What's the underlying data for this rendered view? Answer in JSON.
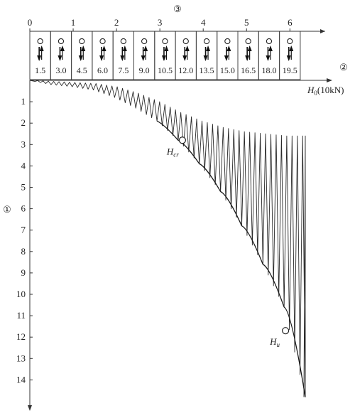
{
  "chart_data": {
    "type": "line",
    "circled_labels": {
      "left_axis": "①",
      "right_arrow": "②",
      "top_axis": "③"
    },
    "x_axis_label": "H₀(10kN)",
    "x_axis_label_parts": {
      "main": "H",
      "sub": "0",
      "rest": "(10kN)"
    },
    "y_tick_labels": [
      "1",
      "2",
      "3",
      "4",
      "5",
      "6",
      "7",
      "8",
      "9",
      "10",
      "11",
      "12",
      "13",
      "14"
    ],
    "y_range": [
      0,
      14.8
    ],
    "top_tick_labels": [
      "0",
      "1",
      "2",
      "3",
      "4",
      "5",
      "6"
    ],
    "top_axis_range": [
      0,
      6.5
    ],
    "load_steps": [
      "1.5",
      "3.0",
      "4.5",
      "6.0",
      "7.5",
      "9.0",
      "10.5",
      "12.0",
      "13.5",
      "15.0",
      "16.5",
      "18.0",
      "19.5"
    ],
    "load_step_values": [
      1.5,
      3.0,
      4.5,
      6.0,
      7.5,
      9.0,
      10.5,
      12.0,
      13.5,
      15.0,
      16.5,
      18.0,
      19.5
    ],
    "cycles_per_step": 4,
    "series": [
      {
        "peak_x": [
          0.0,
          1.5,
          3.0,
          4.5,
          6.0,
          7.5,
          9.0,
          10.5,
          12.0,
          13.5,
          15.0,
          16.5,
          18.0,
          19.5
        ],
        "peak_y": [
          0.0,
          0.2,
          0.3,
          0.45,
          0.8,
          1.3,
          1.9,
          2.8,
          3.9,
          5.2,
          6.8,
          8.6,
          10.6,
          14.8
        ],
        "rebound_x": [
          0.0,
          1.5,
          3.0,
          4.5,
          6.0,
          7.5,
          9.0,
          10.5,
          12.0,
          13.5,
          15.0,
          16.5,
          18.0,
          19.5
        ],
        "rebound_y": [
          0.0,
          0.05,
          0.1,
          0.15,
          0.3,
          0.6,
          1.0,
          1.5,
          1.9,
          2.2,
          2.4,
          2.5,
          2.6,
          2.6
        ]
      }
    ],
    "annotations": [
      {
        "text": "H",
        "sub": "cr",
        "x": 10.8,
        "y": 2.8
      },
      {
        "text": "H",
        "sub": "u",
        "x": 18.1,
        "y": 11.7
      }
    ]
  }
}
